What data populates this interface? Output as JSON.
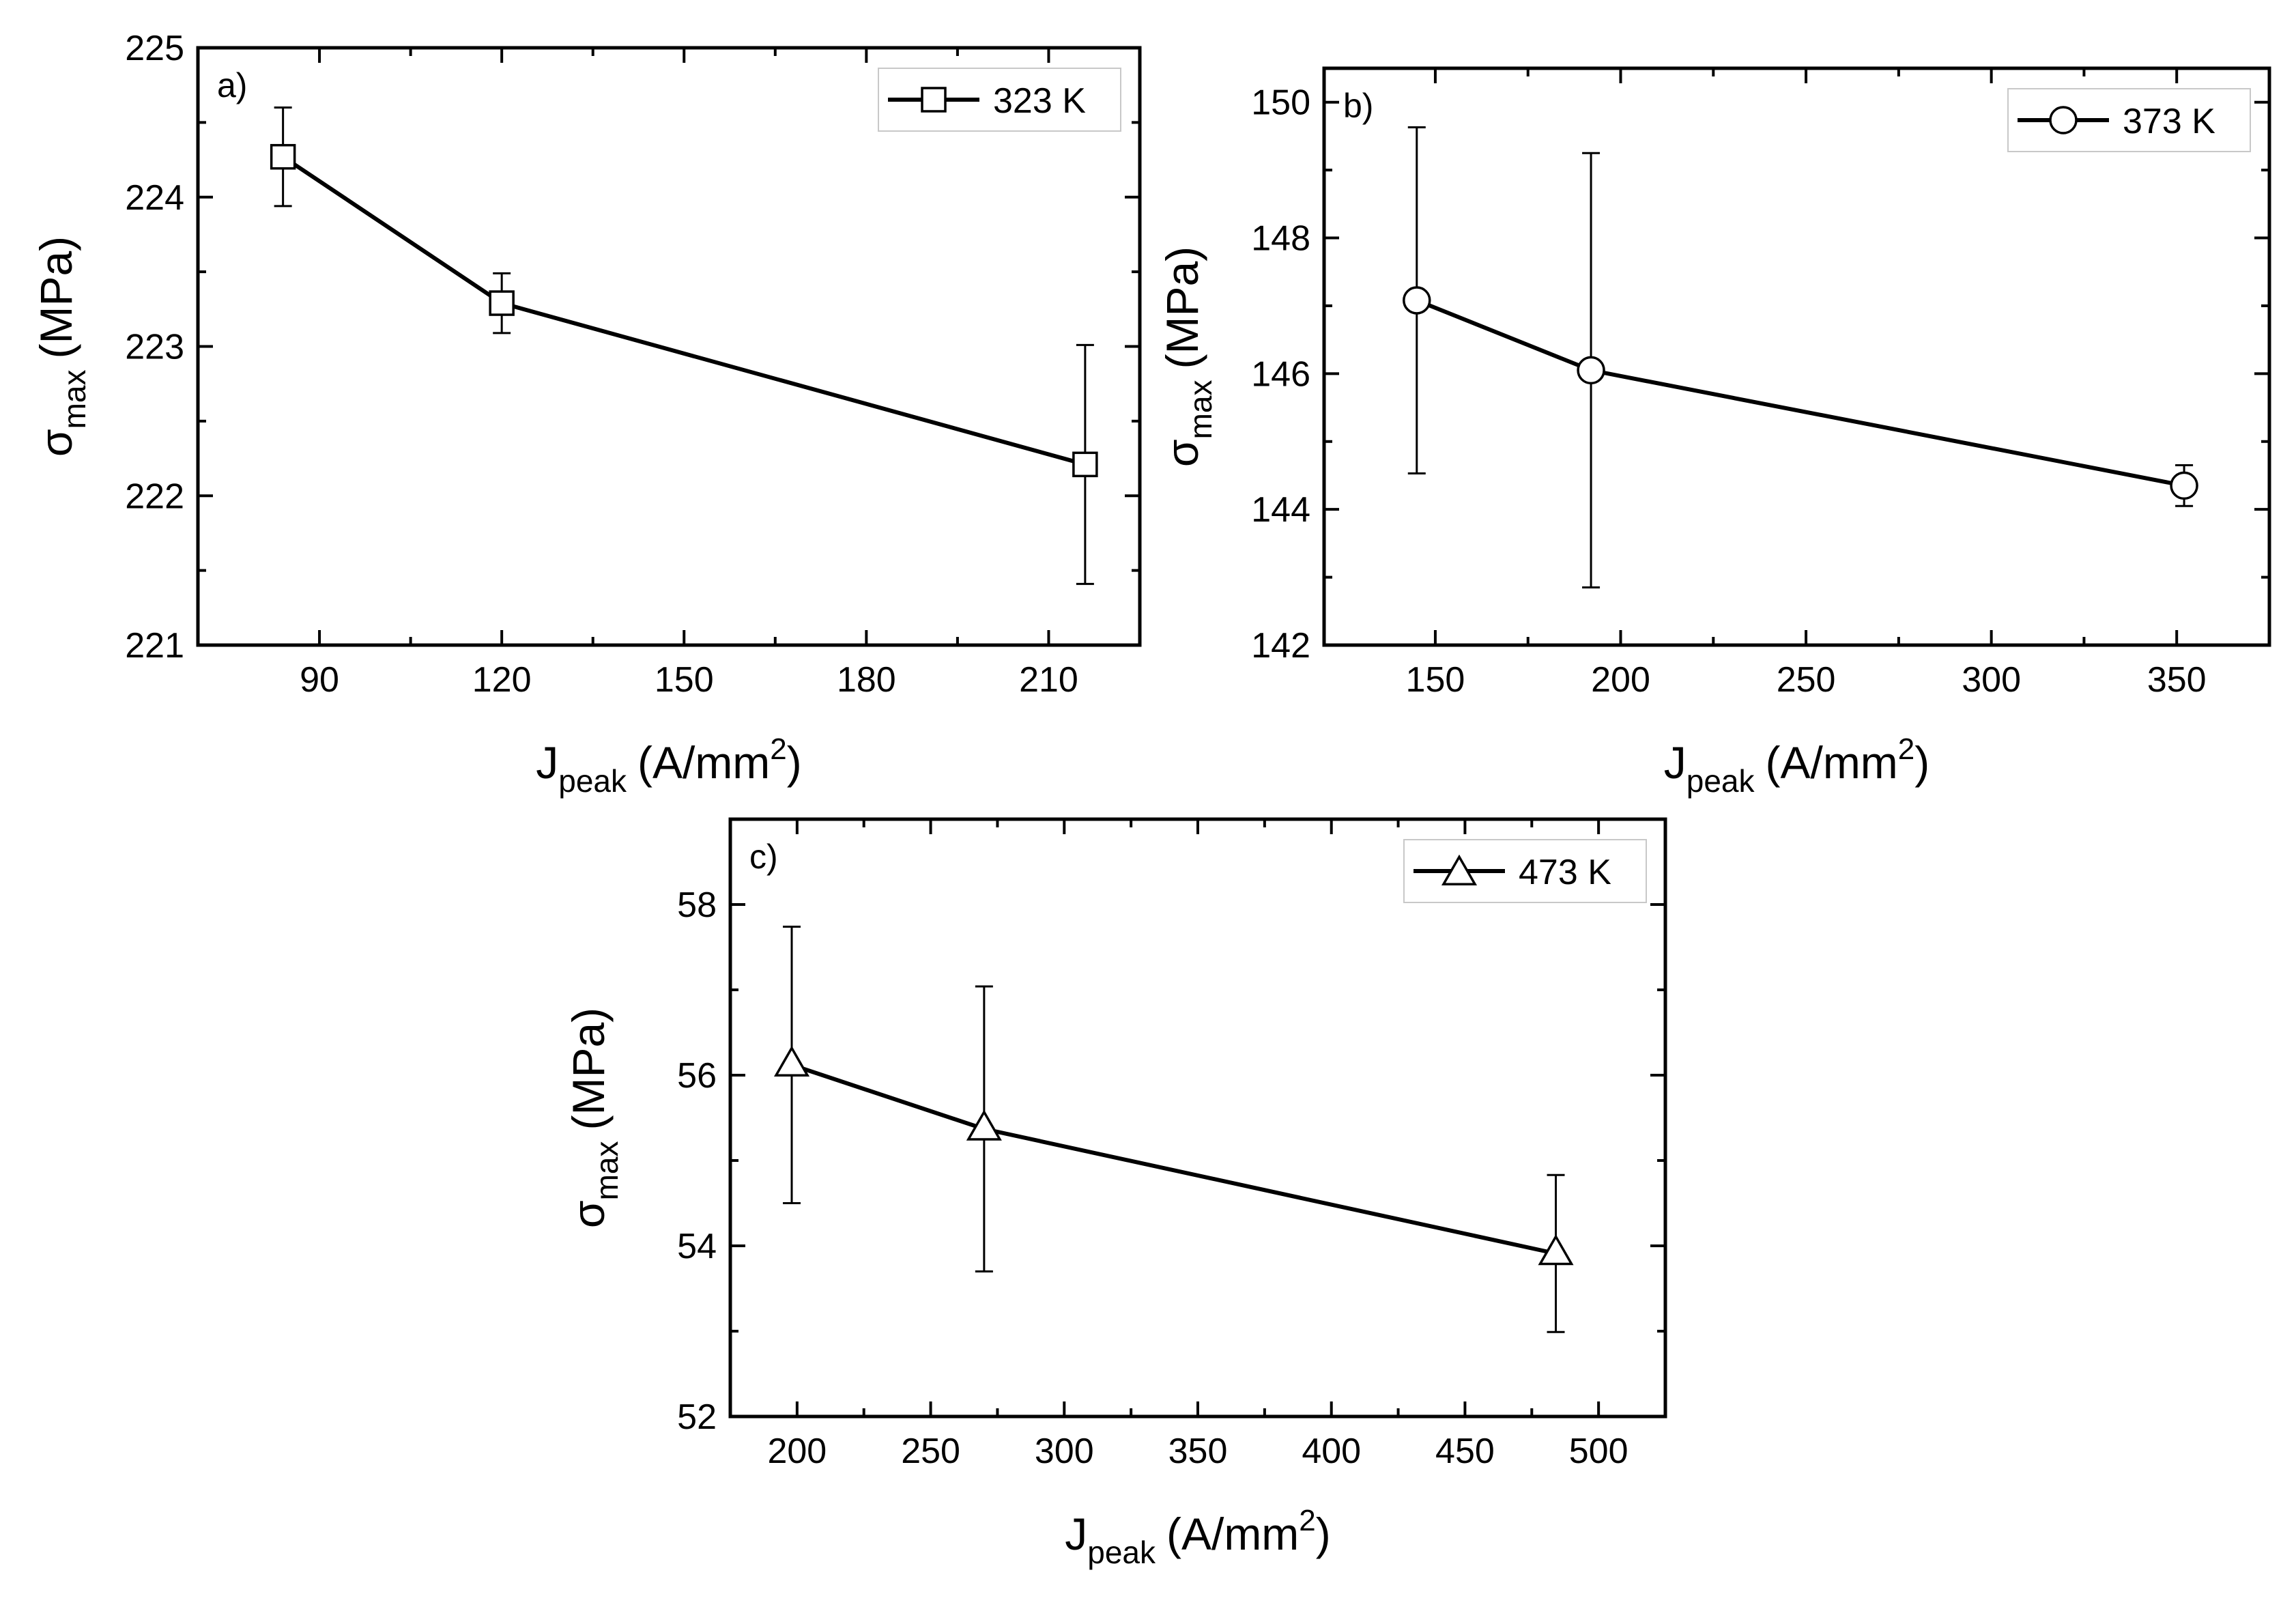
{
  "chart_data": [
    {
      "type": "line",
      "panel_label": "a)",
      "legend": "323 K",
      "marker": "square",
      "x_title_main": "J",
      "x_title_sub": "peak",
      "x_title_unit": "(A/mm",
      "x_title_sup": "2",
      "x_title_close": ")",
      "y_title_main": "σ",
      "y_title_sub": "max",
      "y_title_unit": "(MPa)",
      "xlim": [
        70,
        225
      ],
      "ylim": [
        221,
        225
      ],
      "xticks": [
        90,
        120,
        150,
        180,
        210
      ],
      "yticks": [
        221,
        222,
        223,
        224,
        225
      ],
      "x": [
        84,
        120,
        216
      ],
      "y": [
        224.27,
        223.29,
        222.21
      ],
      "err": [
        0.33,
        0.2,
        0.8
      ],
      "legend_position": "top-right"
    },
    {
      "type": "line",
      "panel_label": "b)",
      "legend": "373 K",
      "marker": "circle",
      "x_title_main": "J",
      "x_title_sub": "peak",
      "x_title_unit": "(A/mm",
      "x_title_sup": "2",
      "x_title_close": ")",
      "y_title_main": "σ",
      "y_title_sub": "max",
      "y_title_unit": "(MPa)",
      "xlim": [
        120,
        375
      ],
      "ylim": [
        142,
        150.5
      ],
      "xticks": [
        150,
        200,
        250,
        300,
        350
      ],
      "yticks": [
        142,
        144,
        146,
        148,
        150
      ],
      "x": [
        145,
        192,
        352
      ],
      "y": [
        147.08,
        146.05,
        144.35
      ],
      "err": [
        2.55,
        3.2,
        0.3
      ],
      "legend_position": "top-right"
    },
    {
      "type": "line",
      "panel_label": "c)",
      "legend": "473 K",
      "marker": "triangle",
      "x_title_main": "J",
      "x_title_sub": "peak",
      "x_title_unit": "(A/mm",
      "x_title_sup": "2",
      "x_title_close": ")",
      "y_title_main": "σ",
      "y_title_sub": "max",
      "y_title_unit": "(MPa)",
      "xlim": [
        175,
        525
      ],
      "ylim": [
        52,
        59
      ],
      "xticks": [
        200,
        250,
        300,
        350,
        400,
        450,
        500
      ],
      "yticks": [
        52,
        54,
        56,
        58
      ],
      "x": [
        198,
        270,
        484
      ],
      "y": [
        56.12,
        55.37,
        53.91
      ],
      "err": [
        1.62,
        1.67,
        0.92
      ],
      "legend_position": "top-right"
    }
  ]
}
